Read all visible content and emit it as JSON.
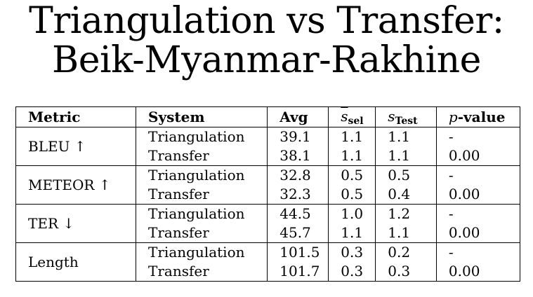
{
  "title": {
    "line1": "Triangulation vs Transfer:",
    "line2": "Beik-Myanmar-Rakhine"
  },
  "table": {
    "headers": {
      "metric": "Metric",
      "system": "System",
      "avg": "Avg",
      "ssel_symbol": "s",
      "ssel_sub": "sel",
      "stest_symbol": "s",
      "stest_sub": "Test",
      "p_symbol": "p",
      "p_suffix": "-value"
    },
    "groups": [
      {
        "metric": "BLEU ↑",
        "rows": [
          {
            "system": "Triangulation",
            "avg": "39.1",
            "ssel": "1.1",
            "stest": "1.1",
            "p": "-"
          },
          {
            "system": "Transfer",
            "avg": "38.1",
            "ssel": "1.1",
            "stest": "1.1",
            "p": "0.00"
          }
        ]
      },
      {
        "metric": "METEOR ↑",
        "rows": [
          {
            "system": "Triangulation",
            "avg": "32.8",
            "ssel": "0.5",
            "stest": "0.5",
            "p": "-"
          },
          {
            "system": "Transfer",
            "avg": "32.3",
            "ssel": "0.5",
            "stest": "0.4",
            "p": "0.00"
          }
        ]
      },
      {
        "metric": "TER ↓",
        "rows": [
          {
            "system": "Triangulation",
            "avg": "44.5",
            "ssel": "1.0",
            "stest": "1.2",
            "p": "-"
          },
          {
            "system": "Transfer",
            "avg": "45.7",
            "ssel": "1.1",
            "stest": "1.1",
            "p": "0.00"
          }
        ]
      },
      {
        "metric": "Length",
        "rows": [
          {
            "system": "Triangulation",
            "avg": "101.5",
            "ssel": "0.3",
            "stest": "0.2",
            "p": "-"
          },
          {
            "system": "Transfer",
            "avg": "101.7",
            "ssel": "0.3",
            "stest": "0.3",
            "p": "0.00"
          }
        ]
      }
    ]
  }
}
